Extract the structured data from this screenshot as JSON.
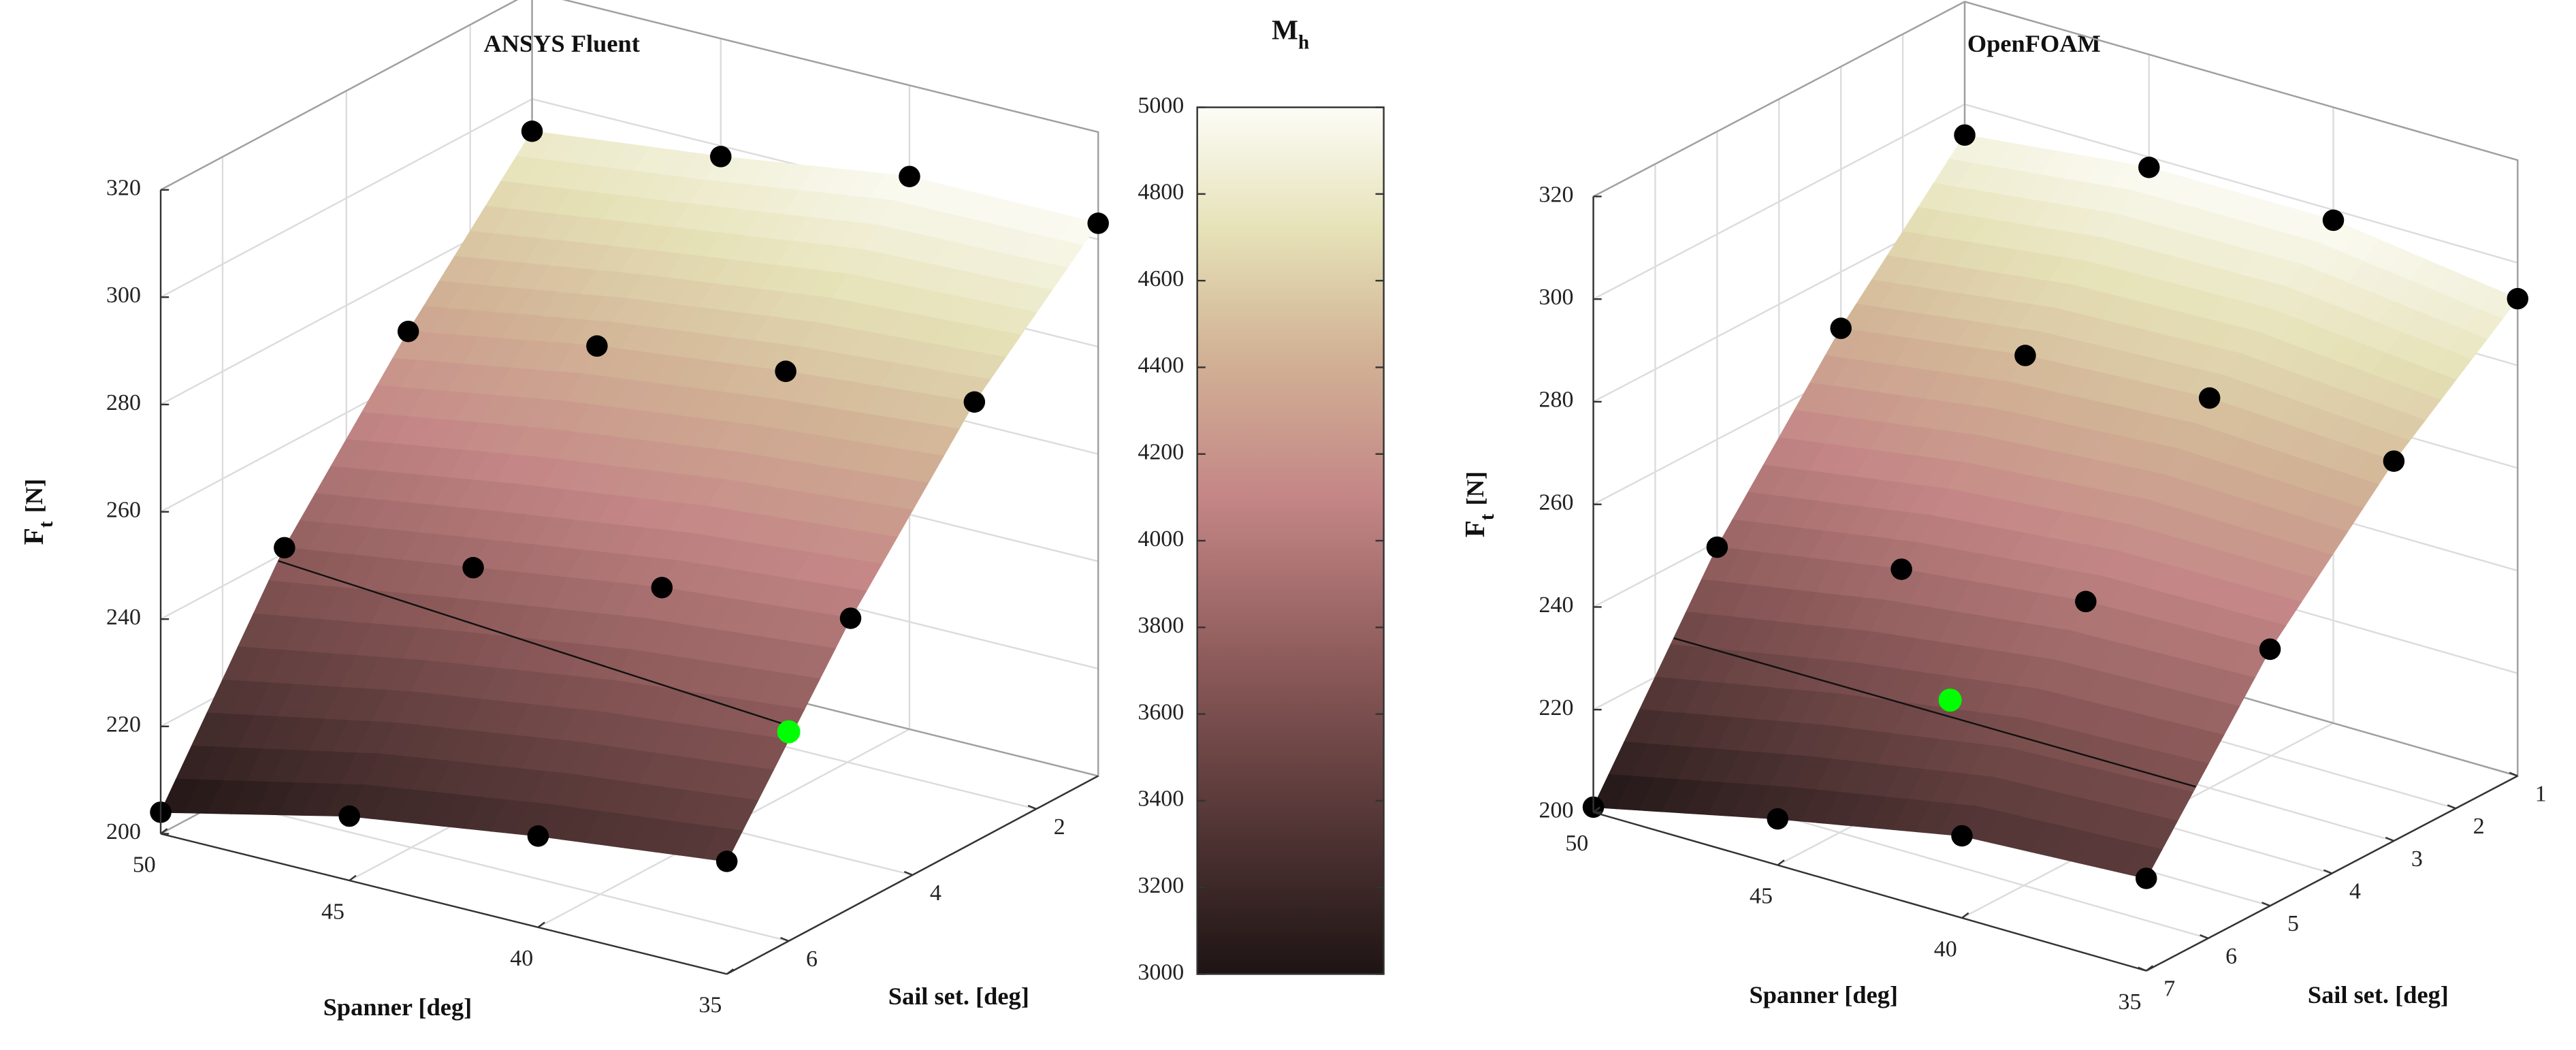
{
  "chart_data": [
    {
      "type": "surface3d",
      "title": "ANSYS Fluent",
      "xlabel": "Spanner [deg]",
      "ylabel": "Sail set. [deg]",
      "zlabel": {
        "main": "F",
        "sub": "t",
        "unit": "[N]"
      },
      "x": [
        50,
        45,
        40,
        35
      ],
      "y": [
        7,
        5,
        3,
        1
      ],
      "z": [
        [
          204,
          212,
          217,
          221
        ],
        [
          241,
          246,
          251,
          254
        ],
        [
          269,
          275,
          279,
          282
        ],
        [
          294,
          298,
          303,
          303
        ]
      ],
      "xlim": [
        35,
        50
      ],
      "ylim": [
        1,
        7
      ],
      "zlim": [
        200,
        320
      ],
      "xticks": [
        35,
        40,
        45,
        50
      ],
      "yticks": [
        2,
        4,
        6
      ],
      "zticks": [
        200,
        220,
        240,
        260,
        280,
        300,
        320
      ],
      "grid": true,
      "marker_color": "#000000",
      "highlight": {
        "x": 35,
        "y": 6,
        "z": 239,
        "color": "#00ff00"
      },
      "contour": {
        "x": [
          50,
          35
        ],
        "y": [
          5.1,
          5.9
        ]
      }
    },
    {
      "type": "surface3d",
      "title": "OpenFOAM",
      "xlabel": "Spanner [deg]",
      "ylabel": "Sail set. [deg]",
      "zlabel": {
        "main": "F",
        "sub": "t",
        "unit": "[N]"
      },
      "x": [
        50,
        45,
        40,
        35
      ],
      "y": [
        7,
        5,
        3,
        1
      ],
      "z": [
        [
          201,
          209,
          216,
          218
        ],
        [
          239,
          245,
          249,
          250
        ],
        [
          269,
          274,
          276,
          274
        ],
        [
          294,
          298,
          298,
          293
        ]
      ],
      "xlim": [
        35,
        50
      ],
      "ylim": [
        1,
        7
      ],
      "zlim": [
        200,
        320
      ],
      "xticks": [
        35,
        40,
        45,
        50
      ],
      "yticks": [
        1,
        2,
        3,
        4,
        5,
        6,
        7
      ],
      "zticks": [
        200,
        220,
        240,
        260,
        280,
        300,
        320
      ],
      "grid": true,
      "marker_color": "#000000",
      "highlight": {
        "x": 42,
        "y": 6,
        "z": 232,
        "color": "#00ff00"
      },
      "contour": {
        "x": [
          50,
          35
        ],
        "y": [
          5.7,
          6.2
        ]
      }
    },
    {
      "type": "colorbar",
      "label": {
        "main": "M",
        "sub": "h"
      },
      "clim": [
        3000,
        5000
      ],
      "ticks": [
        3000,
        3200,
        3400,
        3600,
        3800,
        4000,
        4200,
        4400,
        4600,
        4800,
        5000
      ]
    }
  ]
}
